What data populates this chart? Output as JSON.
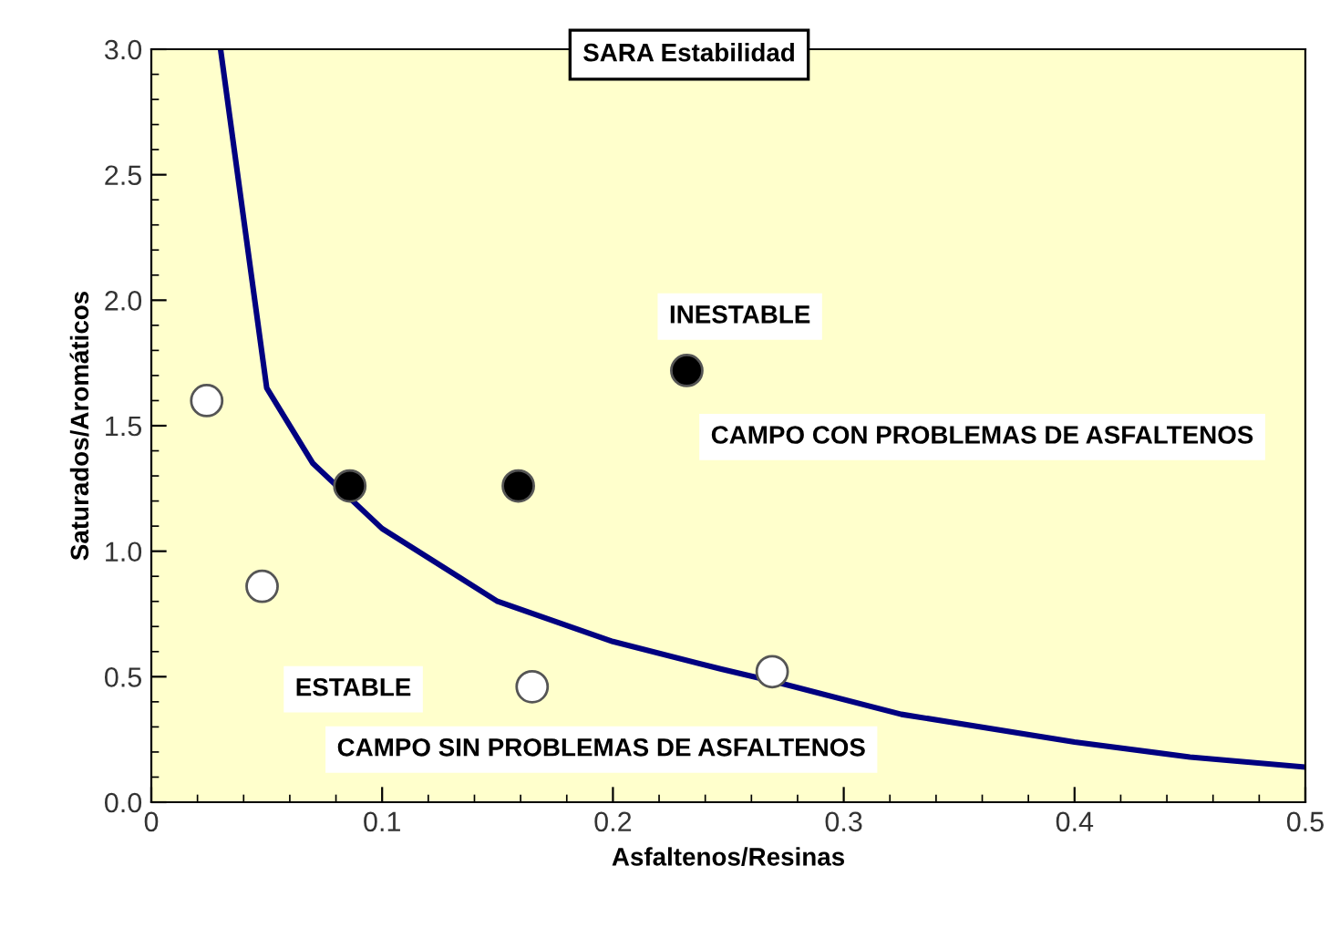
{
  "chart_data": {
    "type": "scatter",
    "title": "SARA Estabilidad",
    "xlabel": "Asfaltenos/Resinas",
    "ylabel": "Saturados/Aromáticos",
    "xlim": [
      0,
      0.5
    ],
    "ylim": [
      0,
      3.0
    ],
    "xticks": [
      {
        "value": 0,
        "label": "0"
      },
      0.1,
      0.2,
      0.3,
      0.4,
      0.5
    ],
    "yticks": [
      {
        "value": 0,
        "label": "0.0"
      },
      0.5,
      {
        "value": 1,
        "label": "1.0"
      },
      1.5,
      {
        "value": 2,
        "label": "2.0"
      },
      2.5,
      {
        "value": 3,
        "label": "3.0"
      }
    ],
    "grid": false,
    "legend": false,
    "annotations": [
      "INESTABLE",
      "CAMPO CON PROBLEMAS DE ASFALTENOS",
      "ESTABLE",
      "CAMPO SIN PROBLEMAS DE ASFALTENOS"
    ],
    "series": [
      {
        "type": "line",
        "color": "#000080",
        "line_style": "solid",
        "marker": "none",
        "x": [
          0.03,
          0.05,
          0.07,
          0.1,
          0.15,
          0.2,
          0.247,
          0.27,
          0.325,
          0.4,
          0.45,
          0.5
        ],
        "values": [
          3.0,
          1.65,
          1.35,
          1.09,
          0.8,
          0.64,
          0.53,
          0.48,
          0.35,
          0.24,
          0.18,
          0.14
        ]
      },
      {
        "color": "#ffffff",
        "marker": "circle",
        "x": [
          0.024,
          0.048,
          0.165,
          0.269
        ],
        "values": [
          1.6,
          0.86,
          0.46,
          0.52
        ]
      },
      {
        "color": "#000000",
        "marker": "circle",
        "x": [
          0.086,
          0.159,
          0.232
        ],
        "values": [
          1.26,
          1.26,
          1.72
        ]
      }
    ]
  }
}
